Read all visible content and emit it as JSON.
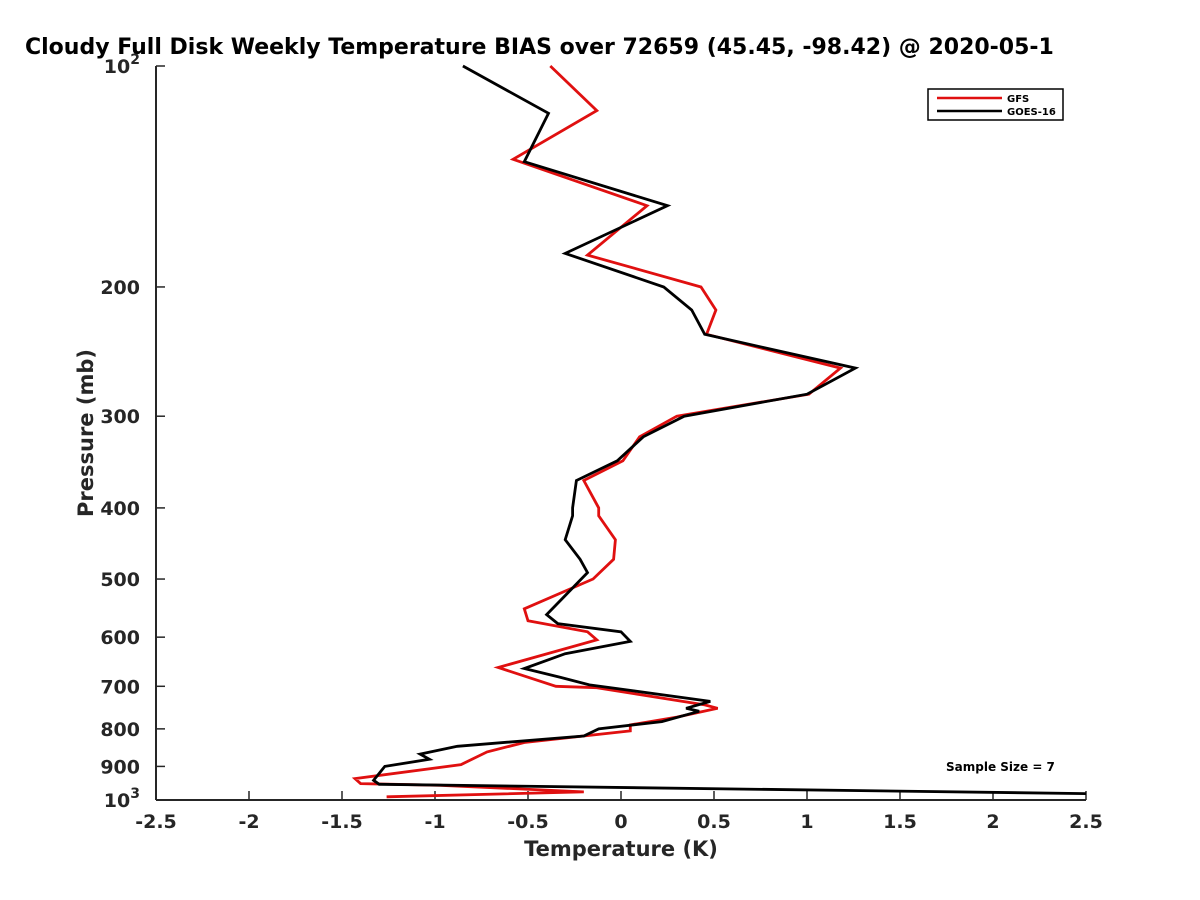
{
  "chart_data": {
    "type": "line",
    "title": "Cloudy Full Disk Weekly Temperature BIAS over 72659 (45.45, -98.42) @ 2020-05-1",
    "xlabel": "Temperature (K)",
    "ylabel": "Pressure (mb)",
    "xlim": [
      -2.5,
      2.5
    ],
    "ylim": [
      100,
      1000
    ],
    "y_scale": "log",
    "y_reversed": true,
    "x_ticks": [
      "-2.5",
      "-2",
      "-1.5",
      "-1",
      "-0.5",
      "0",
      "0.5",
      "1",
      "1.5",
      "2",
      "2.5"
    ],
    "y_ticks": [
      {
        "value": 100,
        "base": "10",
        "exp": "2"
      },
      {
        "value": 200,
        "label": "200"
      },
      {
        "value": 300,
        "label": "300"
      },
      {
        "value": 400,
        "label": "400"
      },
      {
        "value": 500,
        "label": "500"
      },
      {
        "value": 600,
        "label": "600"
      },
      {
        "value": 700,
        "label": "700"
      },
      {
        "value": 800,
        "label": "800"
      },
      {
        "value": 900,
        "label": "900"
      },
      {
        "value": 1000,
        "base": "10",
        "exp": "3"
      }
    ],
    "legend_position": "top-right",
    "annotation": "Sample Size = 7",
    "series": [
      {
        "name": "GFS",
        "color": "#e01010",
        "points": [
          [
            -0.38,
            100
          ],
          [
            -0.13,
            115
          ],
          [
            -0.58,
            134
          ],
          [
            0.14,
            155
          ],
          [
            -0.18,
            181
          ],
          [
            0.43,
            200
          ],
          [
            0.51,
            215
          ],
          [
            0.46,
            232
          ],
          [
            1.18,
            258
          ],
          [
            1.01,
            280
          ],
          [
            0.3,
            300
          ],
          [
            0.1,
            320
          ],
          [
            0.01,
            345
          ],
          [
            -0.2,
            367
          ],
          [
            -0.12,
            400
          ],
          [
            -0.12,
            410
          ],
          [
            -0.03,
            442
          ],
          [
            -0.04,
            470
          ],
          [
            -0.15,
            500
          ],
          [
            -0.52,
            549
          ],
          [
            -0.5,
            570
          ],
          [
            -0.18,
            590
          ],
          [
            -0.13,
            605
          ],
          [
            -0.66,
            660
          ],
          [
            -0.35,
            700
          ],
          [
            -0.13,
            703
          ],
          [
            0.45,
            742
          ],
          [
            0.52,
            750
          ],
          [
            0.3,
            771
          ],
          [
            0.05,
            790
          ],
          [
            0.05,
            805
          ],
          [
            -0.52,
            835
          ],
          [
            -0.72,
            860
          ],
          [
            -0.86,
            895
          ],
          [
            -1.43,
            935
          ],
          [
            -1.4,
            950
          ],
          [
            -0.97,
            955
          ],
          [
            -0.2,
            975
          ],
          [
            -1.26,
            990
          ]
        ]
      },
      {
        "name": "GOES-16",
        "color": "#000000",
        "points": [
          [
            -0.85,
            100
          ],
          [
            -0.39,
            116
          ],
          [
            -0.52,
            135
          ],
          [
            0.25,
            155
          ],
          [
            -0.3,
            180
          ],
          [
            0.23,
            200
          ],
          [
            0.38,
            215
          ],
          [
            0.45,
            232
          ],
          [
            1.26,
            258
          ],
          [
            1.0,
            280
          ],
          [
            0.34,
            300
          ],
          [
            0.12,
            320
          ],
          [
            -0.02,
            345
          ],
          [
            -0.24,
            367
          ],
          [
            -0.26,
            400
          ],
          [
            -0.26,
            410
          ],
          [
            -0.3,
            442
          ],
          [
            -0.22,
            470
          ],
          [
            -0.18,
            490
          ],
          [
            -0.32,
            533
          ],
          [
            -0.4,
            559
          ],
          [
            -0.34,
            575
          ],
          [
            0.0,
            590
          ],
          [
            0.05,
            608
          ],
          [
            -0.3,
            632
          ],
          [
            -0.52,
            662
          ],
          [
            -0.33,
            680
          ],
          [
            -0.17,
            697
          ],
          [
            -0.02,
            705
          ],
          [
            0.48,
            734
          ],
          [
            0.35,
            750
          ],
          [
            0.42,
            757
          ],
          [
            0.22,
            782
          ],
          [
            -0.12,
            800
          ],
          [
            -0.2,
            818
          ],
          [
            -0.88,
            845
          ],
          [
            -1.08,
            866
          ],
          [
            -1.03,
            880
          ],
          [
            -1.27,
            900
          ],
          [
            -1.33,
            940
          ],
          [
            -1.3,
            952
          ],
          [
            2.5,
            980
          ]
        ]
      }
    ]
  }
}
